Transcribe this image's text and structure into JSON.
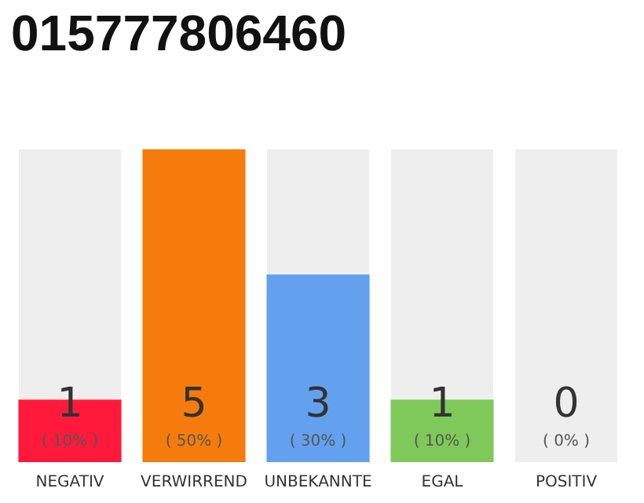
{
  "chart_data": {
    "type": "bar",
    "title": "015777806460",
    "categories": [
      "NEGATIV",
      "VERWIRREND",
      "UNBEKANNTE",
      "EGAL",
      "POSITIV"
    ],
    "values": [
      10,
      50,
      30,
      10,
      0
    ],
    "ylim": [
      0,
      50
    ],
    "colors": [
      "#ff1a3c",
      "#f57c0c",
      "#63a0ee",
      "#7ec95a",
      "#eeeeee"
    ],
    "value_labels": [
      "1\n( 10% )",
      "5\n( 50% )",
      "3\n( 30% )",
      "1\n( 10% )",
      "0\n( 0% )"
    ],
    "tick_labels": "x"
  }
}
